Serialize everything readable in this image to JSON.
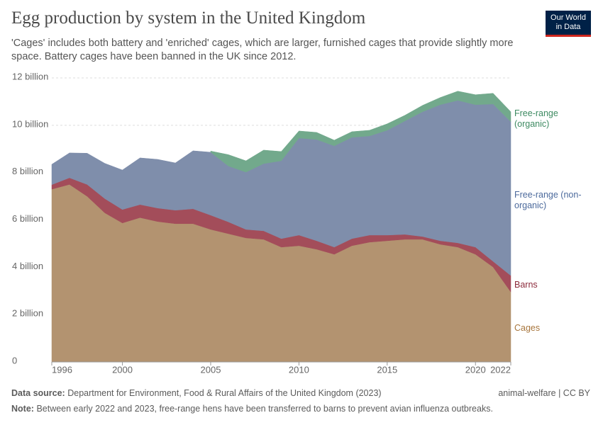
{
  "header": {
    "title": "Egg production by system in the United Kingdom",
    "subtitle": "'Cages' includes both battery and 'enriched' cages, which are larger, furnished cages that provide slightly more space. Battery cages have been banned in the UK since 2012.",
    "logo": "Our World in Data"
  },
  "chart_data": {
    "type": "stacked-area",
    "x": [
      1996,
      1997,
      1998,
      1999,
      2000,
      2001,
      2002,
      2003,
      2004,
      2005,
      2006,
      2007,
      2008,
      2009,
      2010,
      2011,
      2012,
      2013,
      2014,
      2015,
      2016,
      2017,
      2018,
      2019,
      2020,
      2021,
      2022
    ],
    "series": [
      {
        "name": "Cages",
        "color": "#b39370",
        "label_color": "#a8763d",
        "values": [
          7300000000.0,
          7500000000.0,
          7000000000.0,
          6300000000.0,
          5870000000.0,
          6100000000.0,
          5930000000.0,
          5840000000.0,
          5840000000.0,
          5600000000.0,
          5420000000.0,
          5240000000.0,
          5180000000.0,
          4850000000.0,
          4910000000.0,
          4760000000.0,
          4550000000.0,
          4910000000.0,
          5060000000.0,
          5120000000.0,
          5180000000.0,
          5180000000.0,
          4970000000.0,
          4850000000.0,
          4550000000.0,
          4010000000.0,
          2960000000.0
        ]
      },
      {
        "name": "Barns",
        "color": "#a34d5a",
        "label_color": "#8c2a3b",
        "values": [
          190000000.0,
          280000000.0,
          500000000.0,
          600000000.0,
          570000000.0,
          550000000.0,
          570000000.0,
          570000000.0,
          630000000.0,
          600000000.0,
          500000000.0,
          360000000.0,
          360000000.0,
          360000000.0,
          450000000.0,
          360000000.0,
          300000000.0,
          300000000.0,
          300000000.0,
          240000000.0,
          210000000.0,
          120000000.0,
          150000000.0,
          180000000.0,
          300000000.0,
          240000000.0,
          690000000.0
        ]
      },
      {
        "name": "Free-range (non-organic)",
        "color": "#7f8eab",
        "label_color": "#4c6a9c",
        "values": [
          860000000.0,
          1050000000.0,
          1320000000.0,
          1490000000.0,
          1670000000.0,
          1970000000.0,
          2060000000.0,
          2000000000.0,
          2450000000.0,
          2660000000.0,
          2360000000.0,
          2420000000.0,
          2840000000.0,
          3290000000.0,
          4100000000.0,
          4280000000.0,
          4280000000.0,
          4280000000.0,
          4190000000.0,
          4430000000.0,
          4790000000.0,
          5270000000.0,
          5750000000.0,
          6020000000.0,
          6020000000.0,
          6650000000.0,
          6500000000.0
        ]
      },
      {
        "name": "Free-range (organic)",
        "color": "#72a98c",
        "label_color": "#3d8a61",
        "values": [
          null,
          null,
          null,
          null,
          null,
          null,
          null,
          null,
          null,
          50000000.0,
          480000000.0,
          480000000.0,
          570000000.0,
          390000000.0,
          300000000.0,
          300000000.0,
          240000000.0,
          240000000.0,
          240000000.0,
          270000000.0,
          240000000.0,
          270000000.0,
          300000000.0,
          390000000.0,
          420000000.0,
          450000000.0,
          420000000.0
        ]
      }
    ],
    "xlim": [
      1996,
      2022
    ],
    "xticks": [
      1996,
      2000,
      2005,
      2010,
      2015,
      2020,
      2022
    ],
    "ylim": [
      0,
      12000000000.0
    ],
    "yticks": [
      0,
      {
        "value": 2000000000.0,
        "label": "2 billion"
      },
      {
        "value": 4000000000.0,
        "label": "4 billion"
      },
      {
        "value": 6000000000.0,
        "label": "6 billion"
      },
      {
        "value": 8000000000.0,
        "label": "8 billion"
      },
      {
        "value": 10000000000.0,
        "label": "10 billion"
      },
      {
        "value": 12000000000.0,
        "label": "12 billion"
      }
    ],
    "grid": true
  },
  "footer": {
    "source_label": "Data source:",
    "source": "Department for Environment, Food & Rural Affairs of the United Kingdom (2023)",
    "license": "animal-welfare | CC BY",
    "note_label": "Note:",
    "note": "Between early 2022 and 2023, free-range hens have been transferred to barns to prevent avian influenza outbreaks."
  }
}
